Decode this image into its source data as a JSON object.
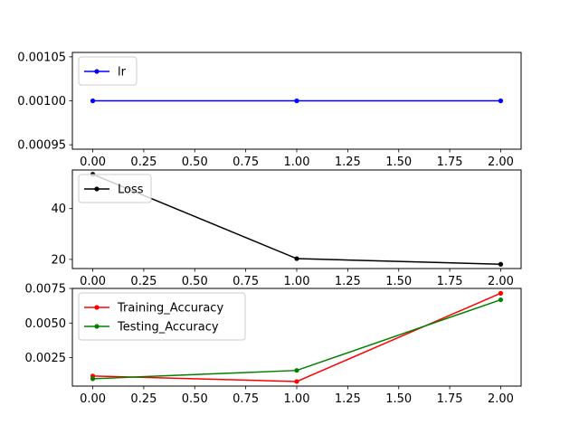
{
  "chart_data": [
    {
      "type": "line",
      "x": [
        0,
        1,
        2
      ],
      "series": [
        {
          "name": "lr",
          "values": [
            0.001,
            0.001,
            0.001
          ],
          "color": "#0000ff"
        }
      ],
      "xlim": [
        -0.1,
        2.1
      ],
      "ylim": [
        0.000945,
        0.001055
      ],
      "xticks": [
        0,
        0.25,
        0.5,
        0.75,
        1.0,
        1.25,
        1.5,
        1.75,
        2.0
      ],
      "xtick_labels": [
        "0.00",
        "0.25",
        "0.50",
        "0.75",
        "1.00",
        "1.25",
        "1.50",
        "1.75",
        "2.00"
      ],
      "yticks": [
        0.00095,
        0.001,
        0.00105
      ],
      "ytick_labels": [
        "0.00095",
        "0.00100",
        "0.00105"
      ],
      "grid": false,
      "legend": "upper-left",
      "title": "",
      "xlabel": "",
      "ylabel": ""
    },
    {
      "type": "line",
      "x": [
        0,
        1,
        2
      ],
      "series": [
        {
          "name": "Loss",
          "values": [
            53.5,
            20.3,
            18.1
          ],
          "color": "#000000"
        }
      ],
      "xlim": [
        -0.1,
        2.1
      ],
      "ylim": [
        16.4,
        55.2
      ],
      "xticks": [
        0,
        0.25,
        0.5,
        0.75,
        1.0,
        1.25,
        1.5,
        1.75,
        2.0
      ],
      "xtick_labels": [
        "0.00",
        "0.25",
        "0.50",
        "0.75",
        "1.00",
        "1.25",
        "1.50",
        "1.75",
        "2.00"
      ],
      "yticks": [
        20,
        40
      ],
      "ytick_labels": [
        "20",
        "40"
      ],
      "grid": false,
      "legend": "upper-left",
      "title": "",
      "xlabel": "",
      "ylabel": ""
    },
    {
      "type": "line",
      "x": [
        0,
        1,
        2
      ],
      "series": [
        {
          "name": "Training_Accuracy",
          "values": [
            0.00118,
            0.00078,
            0.00715
          ],
          "color": "#ff0000"
        },
        {
          "name": "Testing_Accuracy",
          "values": [
            0.00098,
            0.00158,
            0.00668
          ],
          "color": "#008000"
        }
      ],
      "xlim": [
        -0.1,
        2.1
      ],
      "ylim": [
        0.00045,
        0.0075
      ],
      "xticks": [
        0,
        0.25,
        0.5,
        0.75,
        1.0,
        1.25,
        1.5,
        1.75,
        2.0
      ],
      "xtick_labels": [
        "0.00",
        "0.25",
        "0.50",
        "0.75",
        "1.00",
        "1.25",
        "1.50",
        "1.75",
        "2.00"
      ],
      "yticks": [
        0.0025,
        0.005,
        0.0075
      ],
      "ytick_labels": [
        "0.0025",
        "0.0050",
        "0.0075"
      ],
      "grid": false,
      "legend": "upper-left",
      "title": "",
      "xlabel": "",
      "ylabel": ""
    }
  ]
}
